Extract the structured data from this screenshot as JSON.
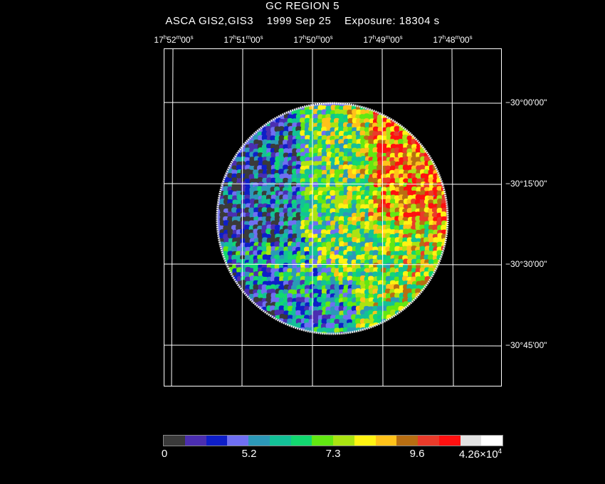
{
  "title": {
    "line1": "GC REGION 5",
    "line2": "ASCA GIS2,GIS3    1999 Sep 25    Exposure: 18304 s"
  },
  "ra_axis": {
    "labels": [
      {
        "h": "17",
        "m": "52",
        "s": "00"
      },
      {
        "h": "17",
        "m": "51",
        "s": "00"
      },
      {
        "h": "17",
        "m": "50",
        "s": "00"
      },
      {
        "h": "17",
        "m": "49",
        "s": "00"
      },
      {
        "h": "17",
        "m": "48",
        "s": "00"
      }
    ]
  },
  "dec_axis": {
    "labels": [
      "−30°00'00\"",
      "−30°15'00\"",
      "−30°30'00\"",
      "−30°45'00\""
    ]
  },
  "colorbar": {
    "colors": [
      "#3a3a3a",
      "#4b2eb0",
      "#0e1ec8",
      "#6f6ff2",
      "#2c98b8",
      "#13c197",
      "#12d870",
      "#62e812",
      "#aae412",
      "#fff312",
      "#ffc21a",
      "#b86e12",
      "#e93b2a",
      "#ff1010",
      "#e2e2e2",
      "#ffffff"
    ],
    "tick_labels": [
      "0",
      "5.2",
      "7.3",
      "9.6"
    ],
    "max_label_mantissa": "4.26×10",
    "max_label_exponent": "4"
  },
  "image": {
    "description_icon": "x-ray-sky-map",
    "grid_color": "#ffffff"
  }
}
